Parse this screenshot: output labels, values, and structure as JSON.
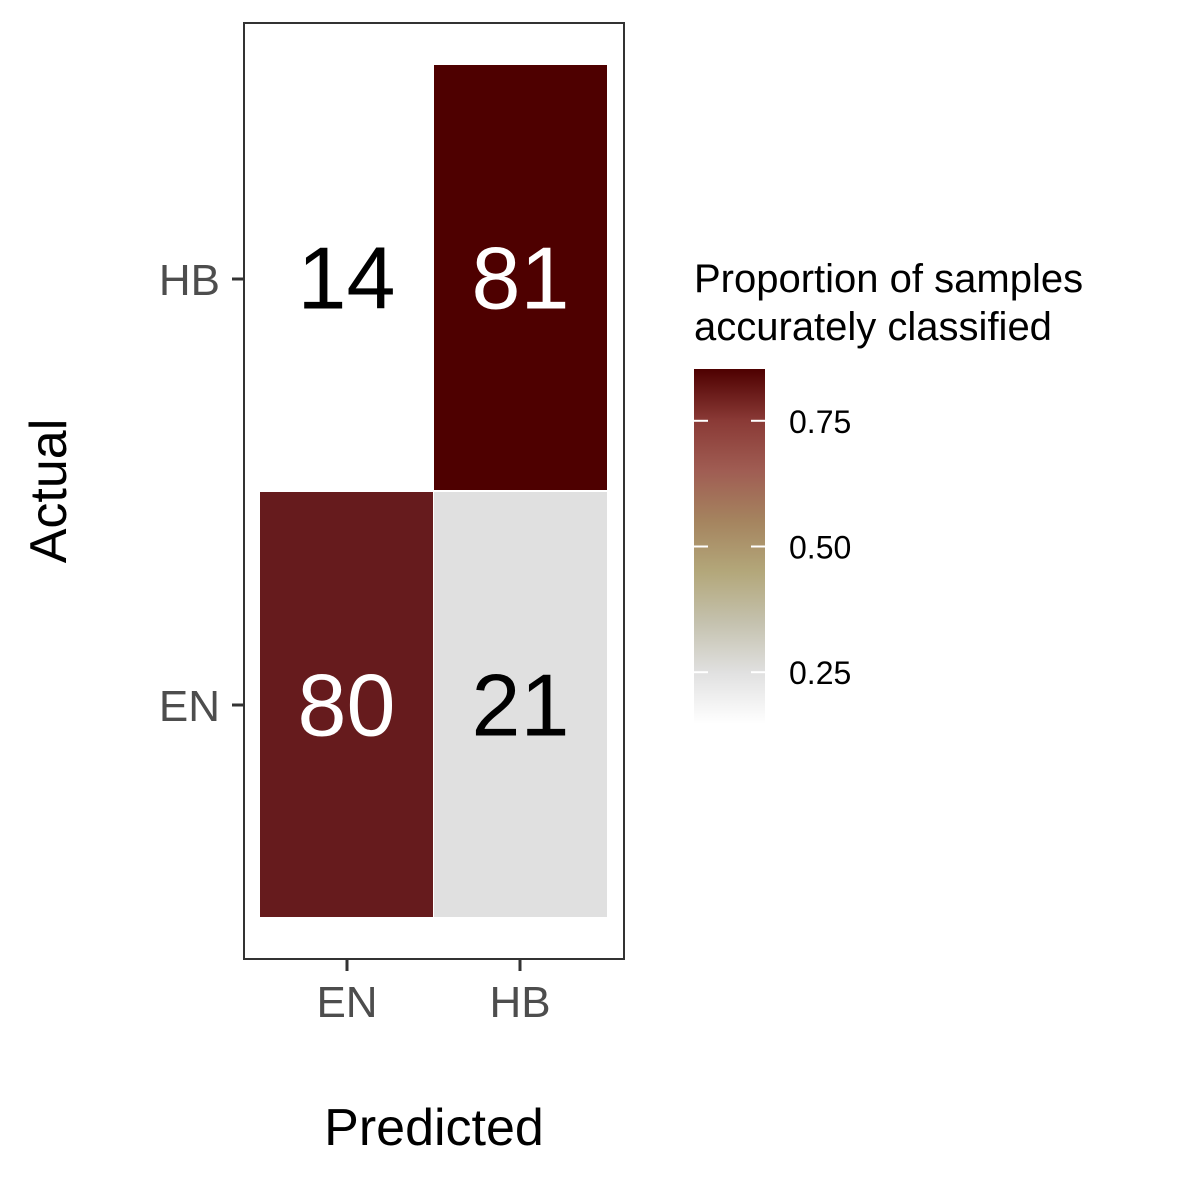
{
  "chart_data": {
    "type": "heatmap",
    "title": "",
    "xlabel": "Predicted",
    "ylabel": "Actual",
    "x_categories": [
      "EN",
      "HB"
    ],
    "y_categories": [
      "EN",
      "HB"
    ],
    "cells": [
      {
        "actual": "HB",
        "predicted": "EN",
        "count": 14,
        "proportion": 0.147,
        "color": "#ffffff",
        "text_color": "#000000"
      },
      {
        "actual": "HB",
        "predicted": "HB",
        "count": 81,
        "proportion": 0.853,
        "color": "#4e0000",
        "text_color": "#ffffff"
      },
      {
        "actual": "EN",
        "predicted": "EN",
        "count": 80,
        "proportion": 0.792,
        "color": "#661b1d",
        "text_color": "#ffffff"
      },
      {
        "actual": "EN",
        "predicted": "HB",
        "count": 21,
        "proportion": 0.208,
        "color": "#e0e0e0",
        "text_color": "#000000"
      }
    ],
    "legend": {
      "title_lines": [
        "Proportion of samples",
        "accurately classified"
      ],
      "range": [
        0.147,
        0.853
      ],
      "ticks": [
        0.25,
        0.5,
        0.75
      ],
      "tick_labels": [
        "0.25",
        "0.50",
        "0.75"
      ],
      "placement": "right",
      "gradient": [
        {
          "value": 0.147,
          "color": "#ffffff"
        },
        {
          "value": 0.25,
          "color": "#e0e0e0"
        },
        {
          "value": 0.35,
          "color": "#c4c1ad"
        },
        {
          "value": 0.45,
          "color": "#b3a77a"
        },
        {
          "value": 0.55,
          "color": "#a5845f"
        },
        {
          "value": 0.65,
          "color": "#a05d53"
        },
        {
          "value": 0.75,
          "color": "#8a3a36"
        },
        {
          "value": 0.853,
          "color": "#4e0000"
        }
      ]
    },
    "grid": false,
    "panel_border": true
  }
}
